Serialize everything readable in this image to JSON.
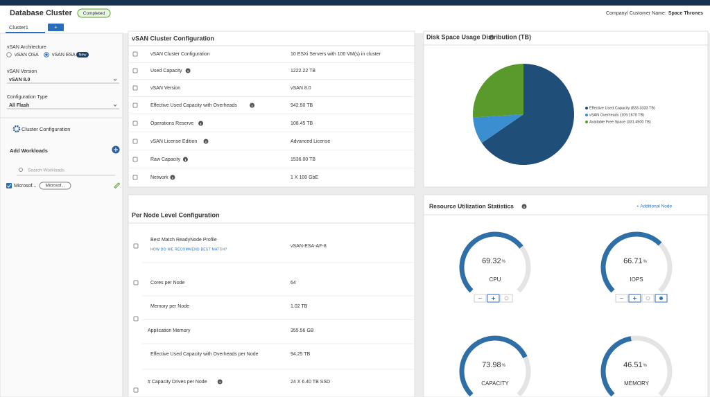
{
  "header": {
    "title": "Database Cluster",
    "status": "Completed",
    "customer_label": "Company/ Customer Name:",
    "customer_name": "Space Thrones"
  },
  "tabs": {
    "items": [
      "Cluster1"
    ],
    "add": "+"
  },
  "sidebar": {
    "architecture": {
      "label": "vSAN Architecture",
      "options": [
        "vSAN OSA",
        "vSAN ESA"
      ],
      "badge": "New"
    },
    "version": {
      "label": "vSAN Version",
      "value": "vSAN 8.0"
    },
    "config_type": {
      "label": "Configuration Type",
      "value": "All Flash"
    },
    "cluster_config": "Cluster Configuration",
    "add_workloads": "Add Workloads",
    "search_placeholder": "Search Workloads",
    "workload": {
      "name": "Microsof...",
      "tag": "Microsof..."
    }
  },
  "cluster_config": {
    "title": "vSAN Cluster Configuration",
    "rows": [
      {
        "label": "vSAN Cluster Configuration",
        "value": "10 ESXi Servers with 100 VM(s) in cluster",
        "info": false
      },
      {
        "label": "Used Capacity",
        "value": "1222.22 TB",
        "info": true
      },
      {
        "label": "vSAN Version",
        "value": "vSAN 8.0",
        "info": false
      },
      {
        "label": "Effective Used Capacity with Overheads",
        "value": "942.50 TB",
        "info": true
      },
      {
        "label": "Operations Reserve",
        "value": "108.45 TB",
        "info": true
      },
      {
        "label": "vSAN License Edition",
        "value": "Advanced License",
        "info": true
      },
      {
        "label": "Raw Capacity",
        "value": "1536.00 TB",
        "info": true
      },
      {
        "label": "Network",
        "value": "1 X 100 GbE",
        "info": true
      }
    ]
  },
  "node_config": {
    "title": "Per Node Level Configuration",
    "link": "HOW DO WE RECOMMEND BEST MATCH?",
    "rows": [
      {
        "label": "Best Match ReadyNode Profile",
        "value": "vSAN-ESA-AF-8",
        "info": false
      },
      {
        "label": "Cores per Node",
        "value": "64",
        "info": false
      },
      {
        "label": "Memory per Node",
        "value": "1.02 TB",
        "info": false
      },
      {
        "label": "Application Memory",
        "value": "355.56 GB",
        "info": false
      },
      {
        "label": "Effective Used Capacity with Overheads per Node",
        "value": "94.25 TB",
        "info": false
      },
      {
        "label": "# Capacity Drives per Node",
        "value": "24 X 6.40 TB SSD",
        "info": true
      }
    ]
  },
  "disk_usage": {
    "title": "Disk Space Usage Distribution (TB)",
    "chart": {
      "type": "pie",
      "labels": [
        "Effective Used Capacity (833.3333 TB)",
        "vSAN Overheads (109.1670 TB)",
        "Available Free Space (331.4500 TB)"
      ],
      "values": [
        833.3333,
        109.167,
        331.45
      ],
      "colors": [
        "#1f4f78",
        "#3b8fd0",
        "#5a9a2d"
      ]
    }
  },
  "resource": {
    "title": "Resource Utilization Statistics",
    "add_node": "+ Additional Node",
    "unit": "%",
    "max": 100,
    "gauges": [
      {
        "label": "CPU",
        "value": 69.32
      },
      {
        "label": "IOPS",
        "value": 66.71
      },
      {
        "label": "CAPACITY",
        "value": 73.98
      },
      {
        "label": "MEMORY",
        "value": 46.51
      }
    ]
  }
}
